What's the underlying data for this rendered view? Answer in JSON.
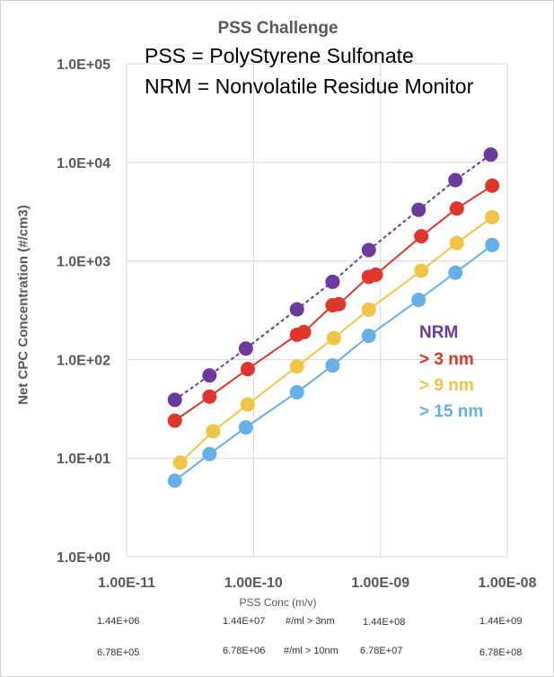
{
  "chart_data": {
    "type": "scatter",
    "title": "PSS Challenge",
    "notes": [
      "PSS = PolyStyrene Sulfonate",
      "NRM = Nonvolatile Residue Monitor"
    ],
    "xlabel": "PSS Conc (m/v)",
    "ylabel": "Net  CPC Concentration (#/cm3)",
    "xscale": "log",
    "yscale": "log",
    "xlim": [
      1e-11,
      1e-08
    ],
    "ylim": [
      1,
      100000
    ],
    "xticks": [
      "1.00E-11",
      "1.00E-10",
      "1.00E-09",
      "1.00E-08"
    ],
    "yticks": [
      "1.0E+00",
      "1.0E+01",
      "1.0E+02",
      "1.0E+03",
      "1.0E+04",
      "1.0E+05"
    ],
    "grid": true,
    "legend_position": "right",
    "series": [
      {
        "name": "NRM",
        "color": "#6a3a9c",
        "dashed": true,
        "x": [
          2.4e-11,
          4.5e-11,
          8.7e-11,
          2.2e-10,
          4.2e-10,
          8.1e-10,
          2e-09,
          3.9e-09,
          7.4e-09
        ],
        "y": [
          39,
          69,
          129,
          323,
          614,
          1290,
          3300,
          6600,
          12000
        ]
      },
      {
        "name": "> 3 nm",
        "color": "#e0352a",
        "dashed": false,
        "x": [
          2.4e-11,
          4.5e-11,
          9e-11,
          2.2e-10,
          2.5e-10,
          4.2e-10,
          4.7e-10,
          8.1e-10,
          9.2e-10,
          2.1e-09,
          4e-09,
          7.6e-09
        ],
        "y": [
          24,
          42,
          80,
          178,
          190,
          355,
          364,
          690,
          725,
          1780,
          3400,
          5800
        ]
      },
      {
        "name": "> 9 nm",
        "color": "#f0c444",
        "dashed": false,
        "x": [
          2.65e-11,
          4.8e-11,
          9e-11,
          2.2e-10,
          4.3e-10,
          8.1e-10,
          2.1e-09,
          4e-09,
          7.6e-09
        ],
        "y": [
          9,
          18.7,
          35,
          85,
          165,
          320,
          795,
          1520,
          2780
        ]
      },
      {
        "name": "> 15 nm",
        "color": "#66b0e8",
        "dashed": false,
        "x": [
          2.4e-11,
          4.5e-11,
          8.7e-11,
          2.2e-10,
          4.2e-10,
          8.1e-10,
          2e-09,
          3.9e-09,
          7.6e-09
        ],
        "y": [
          5.9,
          11,
          20.5,
          46.5,
          87,
          174,
          403,
          760,
          1450
        ]
      }
    ],
    "secondary_axis_rows": [
      {
        "label": "#/ml > 3nm",
        "values": [
          "1.44E+06",
          "1.44E+07",
          "1.44E+08",
          "1.44E+09"
        ]
      },
      {
        "label": "#/ml > 10nm",
        "values": [
          "6.78E+05",
          "6.78E+06",
          "6.78E+07",
          "6.78E+08"
        ]
      }
    ]
  }
}
